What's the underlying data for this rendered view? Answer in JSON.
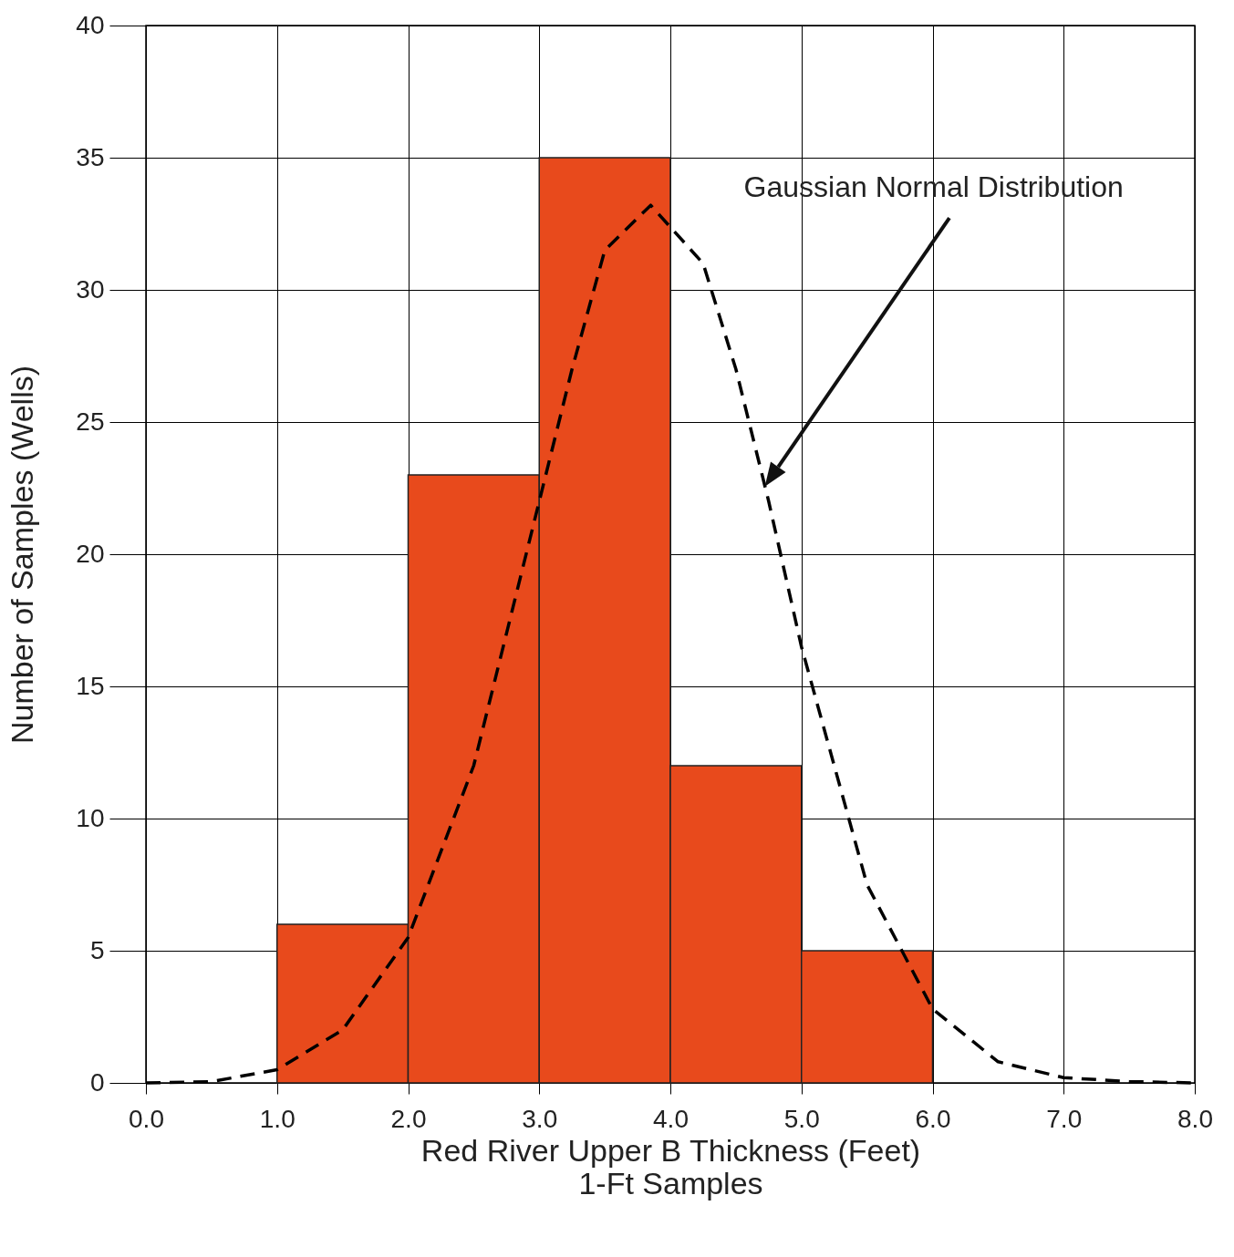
{
  "chart_data": {
    "type": "histogram",
    "xlabel": "Red River Upper B Thickness (Feet)\n1-Ft Samples",
    "ylabel": "Number of Samples (Wells)",
    "bins": [
      1,
      2,
      3,
      4,
      5,
      6
    ],
    "values": [
      6,
      23,
      35,
      12,
      5
    ],
    "color": "#e84a1c",
    "series": [
      {
        "type": "line",
        "line_style": "dashed",
        "color": "#000000",
        "x": [
          0,
          0.5,
          1,
          1.5,
          2,
          2.5,
          3,
          3.25,
          3.5,
          3.85,
          4.25,
          4.5,
          4.75,
          5,
          5.5,
          6,
          6.5,
          7,
          7.5,
          8
        ],
        "values": [
          0,
          0.05,
          0.5,
          2,
          5.5,
          12,
          22,
          27,
          31.5,
          33.2,
          31,
          27,
          22,
          16.5,
          7.5,
          2.8,
          0.8,
          0.2,
          0.05,
          0
        ]
      }
    ],
    "annotations": [
      "Gaussian Normal Distribution"
    ],
    "xlim": [
      0,
      8
    ],
    "xticks": [
      {
        "value": 0,
        "label": "0.0"
      },
      {
        "value": 1,
        "label": "1.0"
      },
      {
        "value": 2,
        "label": "2.0"
      },
      {
        "value": 3,
        "label": "3.0"
      },
      {
        "value": 4,
        "label": "4.0"
      },
      {
        "value": 5,
        "label": "5.0"
      },
      {
        "value": 6,
        "label": "6.0"
      },
      {
        "value": 7,
        "label": "7.0"
      },
      {
        "value": 8,
        "label": "8.0"
      }
    ],
    "ylim": [
      0,
      40
    ],
    "yticks": [
      0,
      5,
      10,
      15,
      20,
      25,
      30,
      35,
      40
    ],
    "grid": true
  }
}
